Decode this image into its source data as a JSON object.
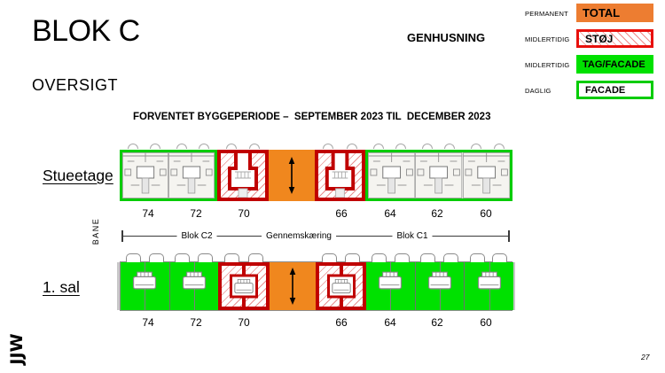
{
  "slide": {
    "title": "BLOK C",
    "subtitle": "OVERSIGT",
    "heading_right": "GENHUSNING",
    "period_title": "FORVENTET BYGGEPERIODE –  SEPTEMBER 2023 TIL  DECEMBER 2023",
    "page_number": "27",
    "logo_text": "JJW"
  },
  "legend": {
    "items": [
      {
        "term": "PERMANENT",
        "label": "TOTAL",
        "style": "orange-solid"
      },
      {
        "term": "MIDLERTIDIG",
        "label": "STØJ",
        "style": "red-hatched"
      },
      {
        "term": "MIDLERTIDIG",
        "label": "TAG/FACADE",
        "style": "green-solid"
      },
      {
        "term": "DAGLIG",
        "label": "FACADE",
        "style": "green-outline"
      }
    ]
  },
  "plan": {
    "bane_label": "BANE",
    "segment_labels": [
      "Blok C2",
      "Gennemskæring",
      "Blok C1"
    ],
    "floors": [
      {
        "name": "Stueetage",
        "unit_numbers": [
          "74",
          "72",
          "70",
          "66",
          "64",
          "62",
          "60"
        ],
        "sections": [
          {
            "units": [
              "74",
              "72"
            ],
            "status": "FACADE"
          },
          {
            "units": [
              "70"
            ],
            "status": "STØJ"
          },
          {
            "units": [],
            "status": "TOTAL"
          },
          {
            "units": [
              "66"
            ],
            "status": "STØJ"
          },
          {
            "units": [
              "64",
              "62",
              "60"
            ],
            "status": "FACADE"
          }
        ]
      },
      {
        "name": "1. sal",
        "unit_numbers": [
          "74",
          "72",
          "70",
          "66",
          "64",
          "62",
          "60"
        ],
        "sections": [
          {
            "units": [
              "74",
              "72"
            ],
            "status": "TAG/FACADE"
          },
          {
            "units": [
              "70"
            ],
            "status": "STØJ"
          },
          {
            "units": [],
            "status": "TOTAL"
          },
          {
            "units": [
              "66"
            ],
            "status": "STØJ"
          },
          {
            "units": [
              "64",
              "62",
              "60"
            ],
            "status": "TAG/FACADE"
          }
        ]
      }
    ]
  },
  "colors": {
    "legend_orange": "#ED7D31",
    "plan_orange": "#F0871E",
    "green_fill": "#00E100",
    "green_border": "#00CC00",
    "red_border": "#C00000",
    "legend_red_border": "#E8100C",
    "hatch_red": "#E89090"
  }
}
